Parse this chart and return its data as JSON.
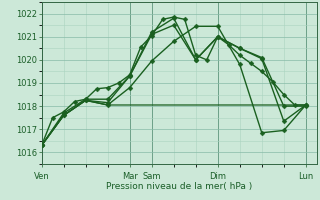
{
  "background_color": "#cce8d8",
  "grid_color_minor": "#aad4c0",
  "grid_color_major": "#88bba8",
  "line_color": "#1a6020",
  "marker_color": "#1a6020",
  "xlabel": "Pression niveau de la mer( hPa )",
  "xlabel_color": "#1a5e28",
  "tick_color": "#1a5e28",
  "label_color": "#1a5e28",
  "ylim": [
    1015.5,
    1022.5
  ],
  "yticks": [
    1016,
    1017,
    1018,
    1019,
    1020,
    1021,
    1022
  ],
  "xlim": [
    0,
    100
  ],
  "series": [
    {
      "x": [
        0,
        4,
        8,
        12,
        16,
        20,
        24,
        28,
        32,
        36,
        40,
        44,
        48,
        52,
        56,
        60,
        64,
        68,
        72,
        76,
        80,
        84,
        88,
        92,
        96
      ],
      "y": [
        1016.3,
        1017.5,
        1017.75,
        1018.2,
        1018.3,
        1018.75,
        1018.8,
        1019.0,
        1019.35,
        1020.55,
        1021.05,
        1021.75,
        1021.85,
        1021.75,
        1020.2,
        1020.0,
        1021.0,
        1020.65,
        1020.2,
        1019.85,
        1019.5,
        1019.05,
        1018.5,
        1018.05,
        1018.05
      ],
      "marker": "D",
      "markersize": 2.5,
      "linewidth": 1.0
    },
    {
      "x": [
        0,
        8,
        16,
        24,
        32,
        40,
        48,
        56,
        64,
        72,
        80,
        88,
        96
      ],
      "y": [
        1016.3,
        1017.7,
        1018.3,
        1018.3,
        1019.3,
        1021.1,
        1021.5,
        1020.0,
        1021.0,
        1020.5,
        1020.1,
        1018.0,
        1018.0
      ],
      "marker": "D",
      "markersize": 2.5,
      "linewidth": 1.0
    },
    {
      "x": [
        0,
        8,
        16,
        24,
        32,
        40,
        48,
        56,
        64,
        72,
        80,
        88,
        96
      ],
      "y": [
        1016.3,
        1017.6,
        1018.25,
        1018.15,
        1019.3,
        1021.2,
        1021.8,
        1020.0,
        1021.0,
        1020.5,
        1020.05,
        1017.35,
        1018.05
      ],
      "marker": "D",
      "markersize": 2.5,
      "linewidth": 1.0
    },
    {
      "x": [
        0,
        8,
        16,
        24,
        32,
        96
      ],
      "y": [
        1016.3,
        1017.6,
        1018.25,
        1018.05,
        1018.05,
        1018.05
      ],
      "marker": null,
      "markersize": 0,
      "linewidth": 0.9
    },
    {
      "x": [
        0,
        8,
        16,
        24,
        32,
        40,
        48,
        56,
        64,
        72,
        80,
        88,
        96
      ],
      "y": [
        1016.3,
        1017.6,
        1018.25,
        1018.05,
        1018.8,
        1019.95,
        1020.8,
        1021.45,
        1021.45,
        1019.8,
        1016.85,
        1016.95,
        1018.05
      ],
      "marker": "D",
      "markersize": 2.5,
      "linewidth": 1.0
    }
  ],
  "vlines_x": [
    0,
    32,
    40,
    64,
    96
  ],
  "xtick_positions": [
    0,
    32,
    40,
    64,
    96
  ],
  "xtick_labels": [
    "Ven",
    "Mar",
    "Sam",
    "Dim",
    "Lun"
  ]
}
